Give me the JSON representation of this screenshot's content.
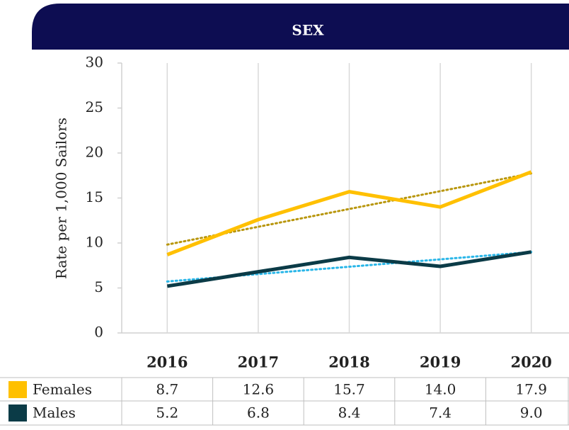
{
  "chart_data": {
    "type": "line",
    "title": "SEX",
    "y_label": "Rate per 1,000 Sailors",
    "categories": [
      "2016",
      "2017",
      "2018",
      "2019",
      "2020"
    ],
    "series": [
      {
        "name": "Females",
        "color": "#ffc000",
        "trendline_color": "#b8960c",
        "values": [
          8.7,
          12.6,
          15.7,
          14.0,
          17.9
        ],
        "value_labels": [
          "8.7",
          "12.6",
          "15.7",
          "14.0",
          "17.9"
        ]
      },
      {
        "name": "Males",
        "color": "#0b3b47",
        "trendline_color": "#29b6e8",
        "values": [
          5.2,
          6.8,
          8.4,
          7.4,
          9.0
        ],
        "value_labels": [
          "5.2",
          "6.8",
          "8.4",
          "7.4",
          "9.0"
        ]
      }
    ],
    "ylim": [
      0,
      30
    ],
    "yticks": [
      0,
      5,
      10,
      15,
      20,
      25,
      30
    ],
    "grid": "vertical",
    "trendline": true
  }
}
